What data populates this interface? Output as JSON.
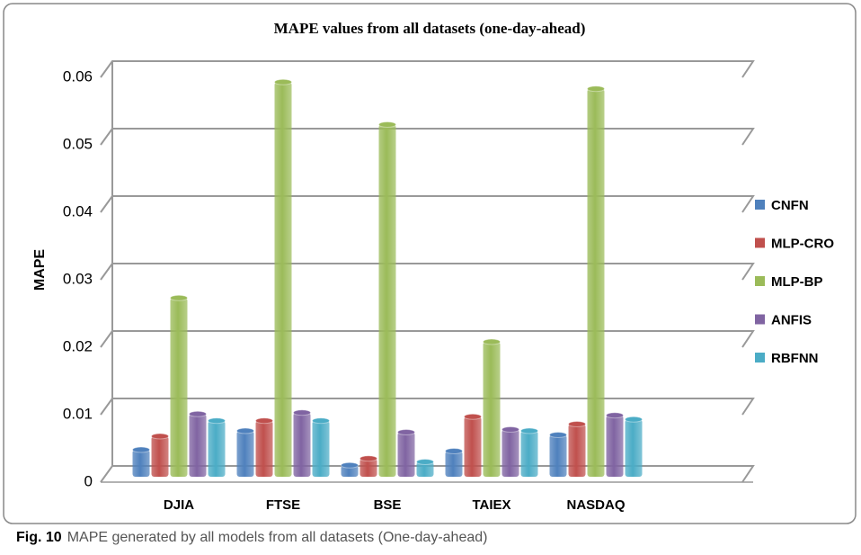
{
  "chart_data": {
    "type": "bar",
    "title": "MAPE values from all datasets (one-day-ahead)",
    "y_label": "MAPE",
    "categories": [
      "DJIA",
      "FTSE",
      "BSE",
      "TAIEX",
      "NASDAQ"
    ],
    "series": [
      {
        "name": "CNFN",
        "color": "#4f81bd",
        "values": [
          0.004,
          0.0068,
          0.0017,
          0.0038,
          0.0062
        ]
      },
      {
        "name": "MLP-CRO",
        "color": "#c0504d",
        "values": [
          0.006,
          0.0083,
          0.0027,
          0.0089,
          0.0078
        ]
      },
      {
        "name": "MLP-BP",
        "color": "#9bbb59",
        "values": [
          0.0265,
          0.0585,
          0.0522,
          0.02,
          0.0575
        ]
      },
      {
        "name": "ANFIS",
        "color": "#8064a2",
        "values": [
          0.0093,
          0.0095,
          0.0066,
          0.007,
          0.0091
        ]
      },
      {
        "name": "RBFNN",
        "color": "#4bacc6",
        "values": [
          0.0083,
          0.0083,
          0.0022,
          0.0068,
          0.0085
        ]
      }
    ],
    "ylim": [
      0,
      0.06
    ],
    "yticks": [
      0,
      0.01,
      0.02,
      0.03,
      0.04,
      0.05,
      0.06
    ],
    "grid": true,
    "legend": "right",
    "caption_label": "Fig. 10",
    "caption": "MAPE generated by all models from all datasets (One-day-ahead)"
  }
}
